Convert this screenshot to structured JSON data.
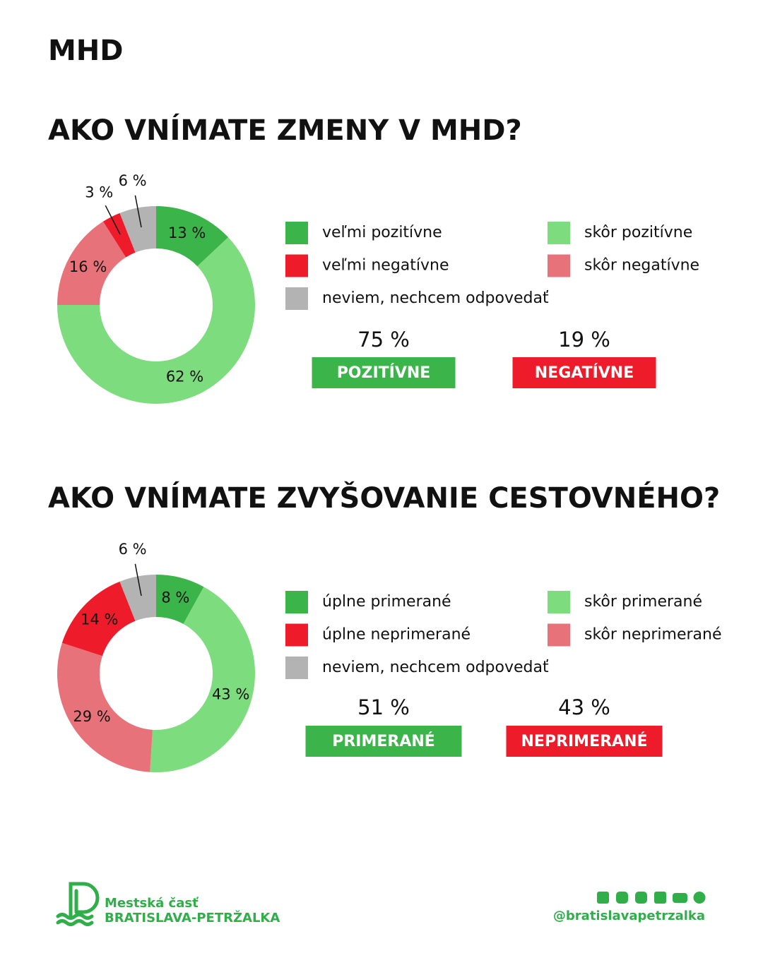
{
  "header": {
    "title": "MHD"
  },
  "chart_data": [
    {
      "type": "donut",
      "title": "AKO VNÍMATE ZMENY V MHD?",
      "categories": [
        "veľmi pozitívne",
        "skôr pozitívne",
        "skôr negatívne",
        "veľmi negatívne",
        "neviem, nechcem odpovedať"
      ],
      "values": [
        13,
        62,
        16,
        3,
        6
      ],
      "value_labels": [
        "13 %",
        "62 %",
        "16 %",
        "3 %",
        "6 %"
      ],
      "colors": [
        "#3bb54a",
        "#7ddc7d",
        "#e8727a",
        "#ee1c2b",
        "#b3b3b3"
      ],
      "summary": [
        {
          "value": 75,
          "label": "75 %",
          "name": "POZITÍVNE",
          "color": "#3bb54a"
        },
        {
          "value": 19,
          "label": "19 %",
          "name": "NEGATÍVNE",
          "color": "#ee1c2b"
        }
      ]
    },
    {
      "type": "donut",
      "title": "AKO VNÍMATE ZVYŠOVANIE CESTOVNÉHO?",
      "categories": [
        "úplne primerané",
        "skôr primerané",
        "skôr neprimerané",
        "úplne neprimerané",
        "neviem, nechcem odpovedať"
      ],
      "values": [
        8,
        43,
        29,
        14,
        6
      ],
      "value_labels": [
        "8 %",
        "43 %",
        "29 %",
        "14 %",
        "6 %"
      ],
      "colors": [
        "#3bb54a",
        "#7ddc7d",
        "#e8727a",
        "#ee1c2b",
        "#b3b3b3"
      ],
      "summary": [
        {
          "value": 51,
          "label": "51 %",
          "name": "PRIMERANÉ",
          "color": "#3bb54a"
        },
        {
          "value": 43,
          "label": "43 %",
          "name": "NEPRIMERANÉ",
          "color": "#ee1c2b"
        }
      ]
    }
  ],
  "footer": {
    "org_line1": "Mestská časť",
    "org_line2": "BRATISLAVA-PETRŽALKA",
    "handle": "@bratislavapetrzalka"
  }
}
